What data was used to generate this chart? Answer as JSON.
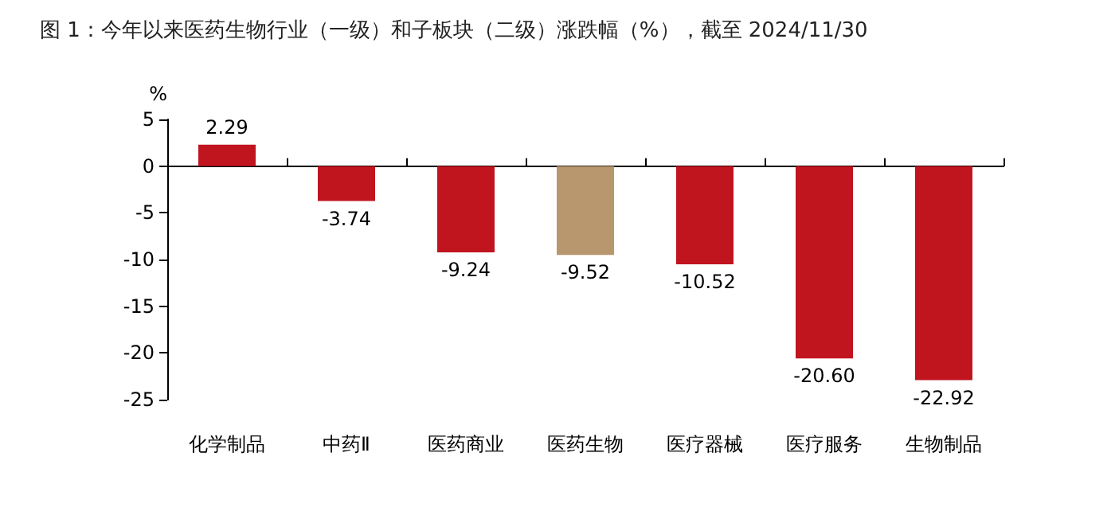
{
  "chart_data": {
    "type": "bar",
    "title": "图 1：今年以来医药生物行业（一级）和子板块（二级）涨跌幅（%），截至 2024/11/30",
    "ylabel": "%",
    "categories": [
      "化学制品",
      "中药Ⅱ",
      "医药商业",
      "医药生物",
      "医疗器械",
      "医疗服务",
      "生物制品"
    ],
    "values": [
      2.29,
      -3.74,
      -9.24,
      -9.52,
      -10.52,
      -20.6,
      -22.92
    ],
    "colors": [
      "#c0141f",
      "#c0141f",
      "#c0141f",
      "#b8976e",
      "#c0141f",
      "#c0141f",
      "#c0141f"
    ],
    "value_labels": [
      "2.29",
      "-3.74",
      "-9.24",
      "-9.52",
      "-10.52",
      "-20.60",
      "-22.92"
    ],
    "ylim": [
      -25,
      5
    ],
    "yticks": [
      -25,
      -20,
      -15,
      -10,
      -5,
      0,
      5
    ]
  }
}
